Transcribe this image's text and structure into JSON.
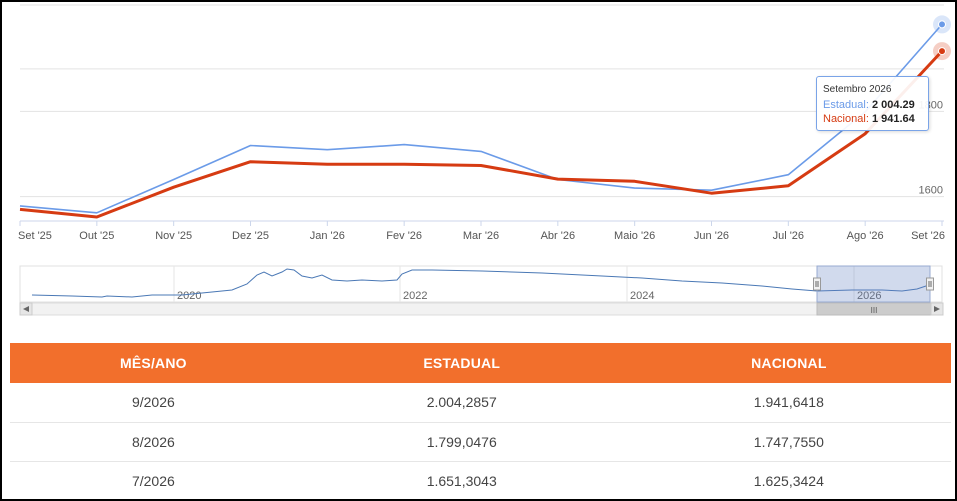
{
  "chart_data": {
    "type": "line",
    "categories": [
      "Set '25",
      "Out '25",
      "Nov '25",
      "Dez '25",
      "Jan '26",
      "Fev '26",
      "Mar '26",
      "Abr '26",
      "Maio '26",
      "Jun '26",
      "Jul '26",
      "Ago '26",
      "Set '26"
    ],
    "series": [
      {
        "name": "Estadual",
        "color": "#6b9be8",
        "values": [
          1578,
          1562,
          1640,
          1720,
          1710,
          1722,
          1706,
          1640,
          1620,
          1615,
          1651.3043,
          1799.0476,
          2004.2857
        ]
      },
      {
        "name": "Nacional",
        "color": "#d63b12",
        "values": [
          1570,
          1552,
          1622,
          1682,
          1676,
          1676,
          1673,
          1641,
          1636,
          1608,
          1625.3424,
          1747.755,
          1941.6418
        ]
      }
    ],
    "ytick_labels": [
      "1600",
      "1800"
    ],
    "ylim": [
      1545,
      2010
    ],
    "grid": true,
    "tooltip": {
      "title": "Setembro 2026",
      "rows": [
        {
          "name": "Estadual",
          "value": "2 004.29"
        },
        {
          "name": "Nacional",
          "value": "1 941.64"
        }
      ]
    },
    "navigator": {
      "year_labels": [
        "2020",
        "2022",
        "2024",
        "2026"
      ],
      "handle_grip": "III"
    }
  },
  "table": {
    "headers": [
      "MÊS/ANO",
      "ESTADUAL",
      "NACIONAL"
    ],
    "rows": [
      [
        "9/2026",
        "2.004,2857",
        "1.941,6418"
      ],
      [
        "8/2026",
        "1.799,0476",
        "1.747,7550"
      ],
      [
        "7/2026",
        "1.651,3043",
        "1.625,3424"
      ]
    ]
  }
}
